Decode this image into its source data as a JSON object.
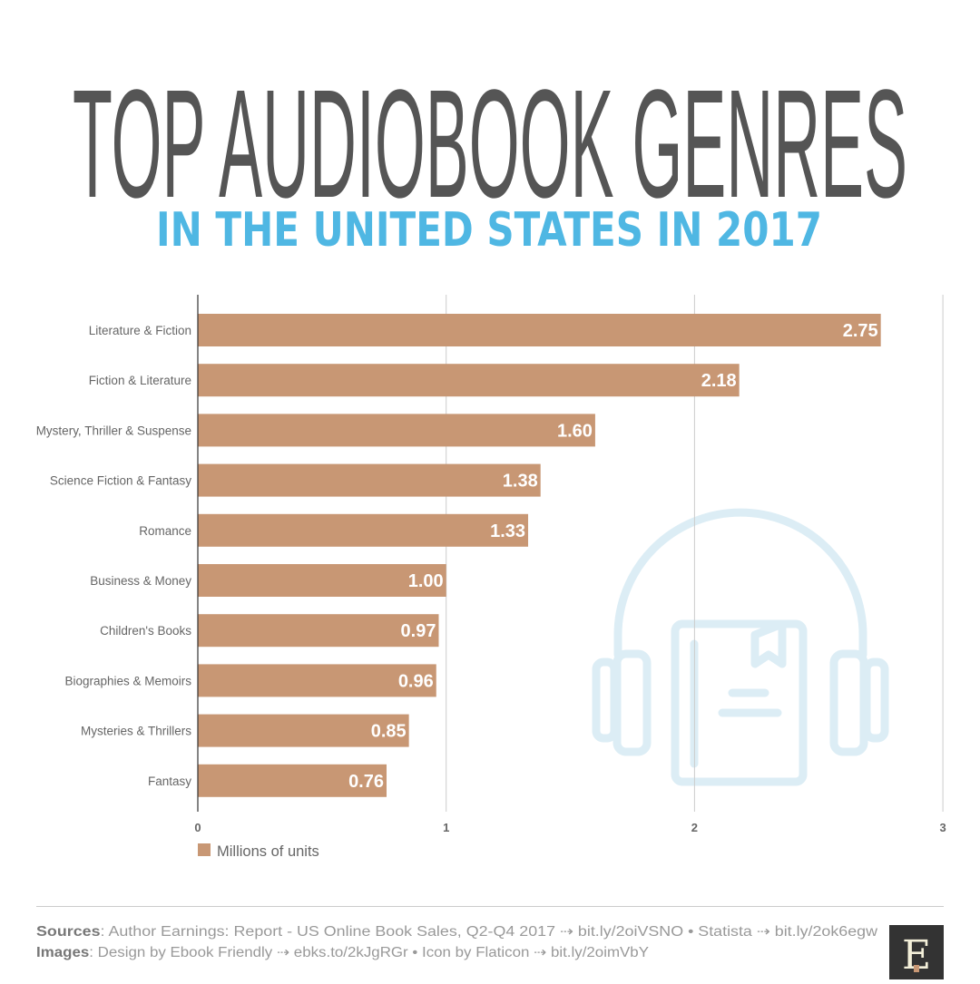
{
  "title": "TOP AUDIOBOOK GENRES",
  "subtitle": "IN THE UNITED STATES IN 2017",
  "chart_data": {
    "type": "bar",
    "orientation": "horizontal",
    "categories": [
      "Literature & Fiction",
      "Fiction & Literature",
      "Mystery, Thriller & Suspense",
      "Science Fiction & Fantasy",
      "Romance",
      "Business & Money",
      "Children's Books",
      "Biographies & Memoirs",
      "Mysteries & Thrillers",
      "Fantasy"
    ],
    "series": [
      {
        "name": "Millions of units",
        "values": [
          2.75,
          2.18,
          1.6,
          1.38,
          1.33,
          1.0,
          0.97,
          0.96,
          0.85,
          0.76
        ],
        "labels": [
          "2.75",
          "2.18",
          "1.60",
          "1.38",
          "1.33",
          "1.00",
          "0.97",
          "0.96",
          "0.85",
          "0.76"
        ],
        "color": "#c89774"
      }
    ],
    "xlim": [
      0,
      3
    ],
    "xticks": [
      "0",
      "1",
      "2",
      "3"
    ],
    "grid": true,
    "legend": "bottom-left"
  },
  "footer": {
    "sources_label": "Sources",
    "sources_text": ": Author Earnings: Report - US Online Book Sales, Q2-Q4 2017 ⇢ bit.ly/2oiVSNO • Statista ⇢ bit.ly/2ok6egw",
    "images_label": "Images",
    "images_text": ": Design by Ebook Friendly ⇢ ebks.to/2kJgRGr • Icon by Flaticon ⇢ bit.ly/2oimVbY"
  },
  "logo_text": "E",
  "colors": {
    "icon": "#dcedf5",
    "accent": "#4fb7e3",
    "bar": "#c89774"
  },
  "icons": [
    "headphones-book-icon"
  ]
}
